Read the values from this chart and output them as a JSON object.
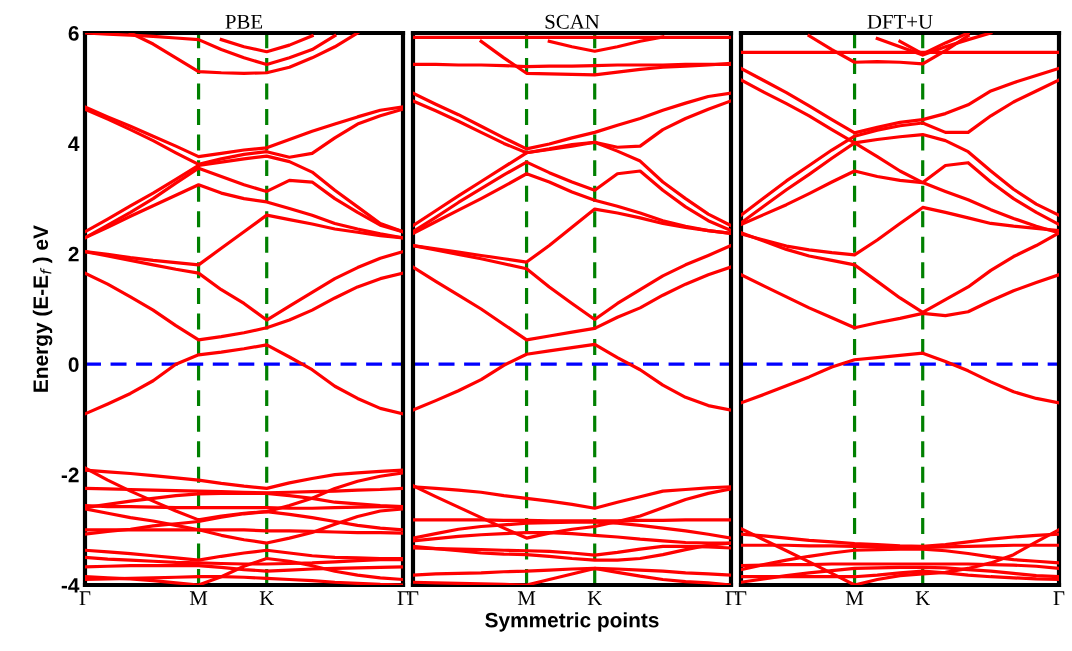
{
  "chart_data": [
    {
      "type": "line",
      "title": "PBE",
      "ylabel": "Energy (E-E$_{f}$ ) eV",
      "categories": [
        "Γ",
        null,
        null,
        null,
        null,
        "M",
        null,
        null,
        "K",
        null,
        null,
        null,
        null,
        null,
        "Γ"
      ],
      "ylim": [
        -4,
        6
      ],
      "yticks": [
        -4,
        -2,
        0,
        2,
        4,
        6
      ],
      "ref_lines": [
        {
          "axis": "x",
          "value": "M",
          "color": "#008000",
          "line_style": "dashed"
        },
        {
          "axis": "x",
          "value": "K",
          "color": "#008000",
          "line_style": "dashed"
        },
        {
          "axis": "y",
          "value": 0,
          "color": "#0000ff",
          "line_style": "dashed"
        }
      ],
      "series": [
        {
          "color": "#ff0000",
          "values": [
            -0.9,
            -0.72,
            -0.53,
            -0.3,
            0.0,
            0.17,
            0.22,
            0.28,
            0.35,
            0.13,
            -0.1,
            -0.4,
            -0.62,
            -0.8,
            -0.9
          ]
        },
        {
          "color": "#ff0000",
          "values": [
            1.65,
            1.45,
            1.22,
            0.98,
            0.7,
            0.44,
            0.5,
            0.57,
            0.66,
            0.8,
            0.98,
            1.2,
            1.4,
            1.55,
            1.65
          ]
        },
        {
          "color": "#ff0000",
          "values": [
            2.04,
            1.96,
            1.88,
            1.8,
            1.72,
            1.65,
            1.35,
            1.1,
            0.8,
            1.05,
            1.3,
            1.55,
            1.75,
            1.92,
            2.04
          ]
        },
        {
          "color": "#ff0000",
          "values": [
            2.04,
            1.99,
            1.93,
            1.88,
            1.84,
            1.8,
            2.1,
            2.4,
            2.7,
            2.62,
            2.54,
            2.45,
            2.39,
            2.33,
            2.29
          ]
        },
        {
          "color": "#ff0000",
          "values": [
            2.29,
            2.48,
            2.68,
            2.87,
            3.06,
            3.25,
            3.1,
            3.0,
            2.94,
            2.82,
            2.7,
            2.55,
            2.45,
            2.36,
            2.29
          ]
        },
        {
          "color": "#ff0000",
          "values": [
            2.29,
            2.52,
            2.75,
            3.0,
            3.28,
            3.55,
            3.4,
            3.25,
            3.13,
            3.33,
            3.3,
            3.0,
            2.75,
            2.52,
            2.4
          ]
        },
        {
          "color": "#ff0000",
          "values": [
            2.4,
            2.63,
            2.87,
            3.1,
            3.35,
            3.6,
            3.66,
            3.72,
            3.77,
            3.67,
            3.48,
            3.15,
            2.85,
            2.55,
            2.4
          ]
        },
        {
          "color": "#ff0000",
          "values": [
            4.66,
            4.48,
            4.31,
            4.13,
            3.95,
            3.76,
            3.82,
            3.88,
            3.92,
            4.07,
            4.22,
            4.35,
            4.48,
            4.6,
            4.66
          ]
        },
        {
          "color": "#ff0000",
          "values": [
            4.62,
            4.44,
            4.25,
            4.05,
            3.83,
            3.62,
            3.72,
            3.8,
            3.85,
            3.75,
            3.82,
            4.1,
            4.35,
            4.5,
            4.62
          ]
        },
        {
          "color": "#ff0000",
          "values": [
            null,
            null,
            6.0,
            5.8,
            5.55,
            5.3,
            5.28,
            5.27,
            5.28,
            5.38,
            5.55,
            5.75,
            6.0,
            null,
            null
          ]
        },
        {
          "color": "#ff0000",
          "values": [
            6.0,
            5.98,
            5.96,
            5.94,
            5.91,
            5.88,
            5.7,
            5.55,
            5.43,
            5.55,
            5.7,
            5.95,
            null,
            null,
            null
          ]
        },
        {
          "color": "#ff0000",
          "values": [
            null,
            null,
            null,
            null,
            null,
            null,
            5.88,
            5.75,
            5.66,
            5.78,
            5.95,
            null,
            null,
            null,
            null
          ]
        },
        {
          "color": "#ff0000",
          "values": [
            -1.92,
            -1.95,
            -1.98,
            -2.02,
            -2.06,
            -2.1,
            -2.16,
            -2.21,
            -2.25,
            -2.15,
            -2.07,
            -2.0,
            -1.97,
            -1.94,
            -1.92
          ]
        },
        {
          "color": "#ff0000",
          "values": [
            -1.88,
            -2.1,
            -2.3,
            -2.48,
            -2.66,
            -2.82,
            -2.75,
            -2.7,
            -2.67,
            -2.56,
            -2.43,
            -2.25,
            -2.12,
            -2.03,
            -1.97
          ]
        },
        {
          "color": "#ff0000",
          "values": [
            -2.25,
            -2.26,
            -2.27,
            -2.28,
            -2.29,
            -2.3,
            -2.31,
            -2.32,
            -2.33,
            -2.32,
            -2.31,
            -2.3,
            -2.28,
            -2.27,
            -2.25
          ]
        },
        {
          "color": "#ff0000",
          "values": [
            -2.6,
            -2.54,
            -2.48,
            -2.43,
            -2.38,
            -2.35,
            -2.34,
            -2.34,
            -2.34,
            -2.38,
            -2.43,
            -2.5,
            -2.53,
            -2.56,
            -2.58
          ]
        },
        {
          "color": "#ff0000",
          "values": [
            -2.56,
            -2.58,
            -2.58,
            -2.59,
            -2.6,
            -2.6,
            -2.6,
            -2.6,
            -2.6,
            -2.61,
            -2.61,
            -2.6,
            -2.59,
            -2.58,
            -2.58
          ]
        },
        {
          "color": "#ff0000",
          "values": [
            -2.62,
            -2.7,
            -2.78,
            -2.84,
            -2.92,
            -3.0,
            -3.1,
            -3.18,
            -3.24,
            -3.15,
            -3.05,
            -2.9,
            -2.76,
            -2.66,
            -2.62
          ]
        },
        {
          "color": "#ff0000",
          "values": [
            -3.0,
            -3.0,
            -3.0,
            -3.0,
            -3.0,
            -3.0,
            -3.0,
            -3.0,
            -3.02,
            -3.02,
            -3.03,
            -3.04,
            -3.05,
            -3.05,
            -3.06
          ]
        },
        {
          "color": "#ff0000",
          "values": [
            -3.08,
            -3.03,
            -2.99,
            -2.93,
            -2.89,
            -2.85,
            -2.77,
            -2.71,
            -2.67,
            -2.72,
            -2.78,
            -2.85,
            -2.92,
            -2.97,
            -3.0
          ]
        },
        {
          "color": "#ff0000",
          "values": [
            -3.37,
            -3.4,
            -3.43,
            -3.47,
            -3.51,
            -3.55,
            -3.48,
            -3.42,
            -3.37,
            -3.42,
            -3.47,
            -3.5,
            -3.51,
            -3.52,
            -3.52
          ]
        },
        {
          "color": "#ff0000",
          "values": [
            -3.5,
            -3.53,
            -3.55,
            -3.57,
            -3.59,
            -3.6,
            -3.61,
            -3.62,
            -3.62,
            -3.61,
            -3.6,
            -3.58,
            -3.56,
            -3.54,
            -3.54
          ]
        },
        {
          "color": "#ff0000",
          "values": [
            -3.67,
            -3.66,
            -3.65,
            -3.65,
            -3.65,
            -3.65,
            -3.68,
            -3.72,
            -3.75,
            -3.73,
            -3.71,
            -3.7,
            -3.69,
            -3.68,
            -3.67
          ]
        },
        {
          "color": "#ff0000",
          "values": [
            -3.85,
            -3.87,
            -3.89,
            -3.92,
            -3.96,
            -4.0,
            -3.85,
            -3.66,
            -3.52,
            -3.57,
            -3.65,
            -3.75,
            -3.82,
            -3.87,
            -3.9
          ]
        },
        {
          "color": "#ff0000",
          "values": [
            -3.9,
            -3.89,
            -3.88,
            -3.87,
            -3.86,
            -3.85,
            -3.85,
            -3.86,
            -3.88,
            -3.9,
            -3.92,
            -3.95,
            -3.97,
            -3.99,
            -4.0
          ]
        }
      ]
    },
    {
      "type": "line",
      "title": "SCAN",
      "xlabel": "Symmetric points",
      "tick_labels": "x",
      "categories": [
        "Γ",
        null,
        null,
        null,
        null,
        "M",
        null,
        null,
        "K",
        null,
        null,
        null,
        null,
        null,
        "Γ"
      ],
      "ylim": [
        -4,
        6
      ],
      "yticks": [
        -4,
        -2,
        0,
        2,
        4,
        6
      ],
      "ref_lines": [
        {
          "axis": "x",
          "value": "M",
          "color": "#008000",
          "line_style": "dashed"
        },
        {
          "axis": "x",
          "value": "K",
          "color": "#008000",
          "line_style": "dashed"
        },
        {
          "axis": "y",
          "value": 0,
          "color": "#0000ff",
          "line_style": "dashed"
        }
      ],
      "series": [
        {
          "color": "#ff0000",
          "values": [
            -0.83,
            -0.66,
            -0.48,
            -0.28,
            -0.02,
            0.18,
            0.24,
            0.3,
            0.36,
            0.12,
            -0.1,
            -0.38,
            -0.6,
            -0.75,
            -0.83
          ]
        },
        {
          "color": "#ff0000",
          "values": [
            1.76,
            1.5,
            1.25,
            1.0,
            0.72,
            0.44,
            0.51,
            0.58,
            0.65,
            0.85,
            1.02,
            1.25,
            1.45,
            1.62,
            1.76
          ]
        },
        {
          "color": "#ff0000",
          "values": [
            2.15,
            2.07,
            1.99,
            1.91,
            1.82,
            1.73,
            1.4,
            1.1,
            0.81,
            1.1,
            1.35,
            1.6,
            1.8,
            1.97,
            2.15
          ]
        },
        {
          "color": "#ff0000",
          "values": [
            2.15,
            2.09,
            2.03,
            1.97,
            1.91,
            1.85,
            2.15,
            2.48,
            2.81,
            2.74,
            2.65,
            2.55,
            2.48,
            2.42,
            2.37
          ]
        },
        {
          "color": "#ff0000",
          "values": [
            2.37,
            2.58,
            2.79,
            3.0,
            3.22,
            3.45,
            3.3,
            3.12,
            2.97,
            2.86,
            2.74,
            2.6,
            2.5,
            2.42,
            2.37
          ]
        },
        {
          "color": "#ff0000",
          "values": [
            2.4,
            2.66,
            2.93,
            3.18,
            3.43,
            3.66,
            3.47,
            3.3,
            3.15,
            3.45,
            3.5,
            3.15,
            2.85,
            2.6,
            2.42
          ]
        },
        {
          "color": "#ff0000",
          "values": [
            2.51,
            2.78,
            3.05,
            3.31,
            3.57,
            3.83,
            3.89,
            3.95,
            4.02,
            3.86,
            3.68,
            3.3,
            3.0,
            2.72,
            2.51
          ]
        },
        {
          "color": "#ff0000",
          "values": [
            4.77,
            4.59,
            4.4,
            4.2,
            4.0,
            3.83,
            3.9,
            3.98,
            4.02,
            3.93,
            3.95,
            4.25,
            4.45,
            4.62,
            4.77
          ]
        },
        {
          "color": "#ff0000",
          "values": [
            4.91,
            4.71,
            4.52,
            4.31,
            4.1,
            3.9,
            3.99,
            4.1,
            4.2,
            4.33,
            4.45,
            4.6,
            4.73,
            4.85,
            4.91
          ]
        },
        {
          "color": "#ff0000",
          "values": [
            5.43,
            5.43,
            5.42,
            5.42,
            5.41,
            5.39,
            5.4,
            5.4,
            5.41,
            5.42,
            5.42,
            5.42,
            5.43,
            5.43,
            5.43
          ]
        },
        {
          "color": "#ff0000",
          "values": [
            null,
            null,
            null,
            5.85,
            5.55,
            5.27,
            5.26,
            5.25,
            5.24,
            5.29,
            5.34,
            5.38,
            5.4,
            5.42,
            5.45
          ]
        },
        {
          "color": "#ff0000",
          "values": [
            null,
            null,
            null,
            null,
            null,
            null,
            5.85,
            5.75,
            5.67,
            5.75,
            5.85,
            5.93,
            null,
            null,
            null
          ]
        },
        {
          "color": "#ff0000",
          "values": [
            5.92,
            5.92,
            5.92,
            5.92,
            5.92,
            5.92,
            5.92,
            5.92,
            5.92,
            5.92,
            5.92,
            5.92,
            5.92,
            5.92,
            5.92
          ]
        },
        {
          "color": "#ff0000",
          "values": [
            -2.22,
            -2.25,
            -2.28,
            -2.32,
            -2.38,
            -2.43,
            -2.48,
            -2.54,
            -2.61,
            -2.5,
            -2.4,
            -2.3,
            -2.27,
            -2.24,
            -2.22
          ]
        },
        {
          "color": "#ff0000",
          "values": [
            -2.2,
            -2.4,
            -2.59,
            -2.78,
            -2.97,
            -3.15,
            -3.06,
            -2.99,
            -2.94,
            -2.85,
            -2.75,
            -2.6,
            -2.45,
            -2.34,
            -2.26
          ]
        },
        {
          "color": "#ff0000",
          "values": [
            -2.82,
            -2.82,
            -2.82,
            -2.82,
            -2.83,
            -2.83,
            -2.84,
            -2.84,
            -2.84,
            -2.84,
            -2.83,
            -2.83,
            -2.82,
            -2.82,
            -2.82
          ]
        },
        {
          "color": "#ff0000",
          "values": [
            -3.15,
            -3.07,
            -2.99,
            -2.94,
            -2.91,
            -2.88,
            -2.87,
            -2.86,
            -2.86,
            -2.88,
            -2.92,
            -2.97,
            -3.02,
            -3.08,
            -3.15
          ]
        },
        {
          "color": "#ff0000",
          "values": [
            -3.2,
            -3.16,
            -3.12,
            -3.09,
            -3.07,
            -3.05,
            -3.05,
            -3.07,
            -3.1,
            -3.13,
            -3.17,
            -3.2,
            -3.23,
            -3.24,
            -3.24
          ]
        },
        {
          "color": "#ff0000",
          "values": [
            -3.33,
            -3.34,
            -3.35,
            -3.36,
            -3.37,
            -3.38,
            -3.39,
            -3.42,
            -3.46,
            -3.41,
            -3.35,
            -3.3,
            -3.3,
            -3.31,
            -3.33
          ]
        },
        {
          "color": "#ff0000",
          "values": [
            -3.3,
            -3.34,
            -3.38,
            -3.42,
            -3.44,
            -3.45,
            -3.48,
            -3.52,
            -3.55,
            -3.55,
            -3.52,
            -3.45,
            -3.36,
            -3.28,
            -3.24
          ]
        },
        {
          "color": "#ff0000",
          "values": [
            -3.82,
            -3.8,
            -3.79,
            -3.78,
            -3.76,
            -3.75,
            -3.73,
            -3.71,
            -3.7,
            -3.71,
            -3.73,
            -3.75,
            -3.78,
            -3.8,
            -3.82
          ]
        },
        {
          "color": "#ff0000",
          "values": [
            -3.95,
            -3.96,
            -3.97,
            -3.98,
            -3.99,
            -4.0,
            -3.9,
            -3.8,
            -3.7,
            -3.77,
            -3.84,
            -3.9,
            -3.94,
            -3.96,
            -4.0
          ]
        }
      ]
    },
    {
      "type": "line",
      "title": "DFT+U",
      "tick_labels": "x",
      "categories": [
        "Γ",
        null,
        null,
        null,
        null,
        "M",
        null,
        null,
        "K",
        null,
        null,
        null,
        null,
        null,
        "Γ"
      ],
      "ylim": [
        -4,
        6
      ],
      "yticks": [
        -4,
        -2,
        0,
        2,
        4,
        6
      ],
      "ref_lines": [
        {
          "axis": "x",
          "value": "M",
          "color": "#008000",
          "line_style": "dashed"
        },
        {
          "axis": "x",
          "value": "K",
          "color": "#008000",
          "line_style": "dashed"
        },
        {
          "axis": "y",
          "value": 0,
          "color": "#0000ff",
          "line_style": "dashed"
        }
      ],
      "series": [
        {
          "color": "#ff0000",
          "values": [
            -0.7,
            -0.55,
            -0.39,
            -0.23,
            -0.05,
            0.08,
            0.12,
            0.16,
            0.2,
            0.05,
            -0.12,
            -0.32,
            -0.5,
            -0.62,
            -0.7
          ]
        },
        {
          "color": "#ff0000",
          "values": [
            1.62,
            1.42,
            1.22,
            1.02,
            0.84,
            0.66,
            0.75,
            0.83,
            0.92,
            0.88,
            0.95,
            1.15,
            1.33,
            1.48,
            1.62
          ]
        },
        {
          "color": "#ff0000",
          "values": [
            2.38,
            2.23,
            2.08,
            1.96,
            1.88,
            1.8,
            1.5,
            1.2,
            0.94,
            1.17,
            1.4,
            1.7,
            1.95,
            2.15,
            2.38
          ]
        },
        {
          "color": "#ff0000",
          "values": [
            2.36,
            2.25,
            2.14,
            2.07,
            2.02,
            1.98,
            2.25,
            2.55,
            2.84,
            2.75,
            2.65,
            2.55,
            2.5,
            2.46,
            2.42
          ]
        },
        {
          "color": "#ff0000",
          "values": [
            2.53,
            2.71,
            2.89,
            3.09,
            3.3,
            3.5,
            3.4,
            3.33,
            3.29,
            3.6,
            3.65,
            3.3,
            3.0,
            2.75,
            2.53
          ]
        },
        {
          "color": "#ff0000",
          "values": [
            2.56,
            2.86,
            3.16,
            3.44,
            3.73,
            4.01,
            4.07,
            4.12,
            4.16,
            4.05,
            3.85,
            3.5,
            3.17,
            2.9,
            2.7
          ]
        },
        {
          "color": "#ff0000",
          "values": [
            5.15,
            4.93,
            4.72,
            4.5,
            4.25,
            4.01,
            3.76,
            3.5,
            3.29,
            3.13,
            2.98,
            2.8,
            2.64,
            2.5,
            2.38
          ]
        },
        {
          "color": "#ff0000",
          "values": [
            2.7,
            3.01,
            3.32,
            3.6,
            3.88,
            4.13,
            4.24,
            4.32,
            4.37,
            4.2,
            4.2,
            4.5,
            4.75,
            4.95,
            5.15
          ]
        },
        {
          "color": "#ff0000",
          "values": [
            5.36,
            5.14,
            4.92,
            4.68,
            4.43,
            4.19,
            4.29,
            4.38,
            4.43,
            4.54,
            4.7,
            4.95,
            5.1,
            5.23,
            5.36
          ]
        },
        {
          "color": "#ff0000",
          "values": [
            5.65,
            5.65,
            5.65,
            5.65,
            5.65,
            5.65,
            5.65,
            5.65,
            5.65,
            5.65,
            5.65,
            5.65,
            5.65,
            5.65,
            5.65
          ]
        },
        {
          "color": "#ff0000",
          "values": [
            null,
            null,
            null,
            5.95,
            5.7,
            5.47,
            5.48,
            5.47,
            5.44,
            5.68,
            5.95,
            null,
            null,
            null,
            null
          ]
        },
        {
          "color": "#ff0000",
          "values": [
            null,
            null,
            null,
            null,
            null,
            null,
            5.9,
            5.75,
            5.6,
            5.75,
            5.88,
            6.0,
            null,
            null,
            null
          ]
        },
        {
          "color": "#ff0000",
          "values": [
            null,
            null,
            null,
            null,
            null,
            null,
            null,
            5.85,
            5.62,
            5.82,
            6.0,
            null,
            null,
            null,
            null
          ]
        },
        {
          "color": "#ff0000",
          "values": [
            -3.08,
            -3.11,
            -3.15,
            -3.19,
            -3.22,
            -3.25,
            -3.27,
            -3.29,
            -3.3,
            -3.27,
            -3.22,
            -3.17,
            -3.13,
            -3.1,
            -3.08
          ]
        },
        {
          "color": "#ff0000",
          "values": [
            -2.98,
            -3.18,
            -3.38,
            -3.58,
            -3.79,
            -4.0,
            -3.9,
            -3.83,
            -3.8,
            -3.77,
            -3.7,
            -3.6,
            -3.45,
            -3.22,
            -3.0
          ]
        },
        {
          "color": "#ff0000",
          "values": [
            -3.28,
            -3.28,
            -3.28,
            -3.29,
            -3.29,
            -3.3,
            -3.31,
            -3.32,
            -3.32,
            -3.31,
            -3.3,
            -3.29,
            -3.28,
            -3.28,
            -3.28
          ]
        },
        {
          "color": "#ff0000",
          "values": [
            -3.72,
            -3.63,
            -3.55,
            -3.48,
            -3.42,
            -3.37,
            -3.36,
            -3.35,
            -3.35,
            -3.38,
            -3.43,
            -3.49,
            -3.54,
            -3.57,
            -3.6
          ]
        },
        {
          "color": "#ff0000",
          "values": [
            -3.65,
            -3.64,
            -3.63,
            -3.63,
            -3.62,
            -3.62,
            -3.62,
            -3.62,
            -3.62,
            -3.62,
            -3.62,
            -3.63,
            -3.64,
            -3.66,
            -3.7
          ]
        },
        {
          "color": "#ff0000",
          "values": [
            -3.85,
            -3.85,
            -3.85,
            -3.85,
            -3.85,
            -3.85,
            -3.82,
            -3.78,
            -3.75,
            -3.78,
            -3.82,
            -3.85,
            -3.87,
            -3.89,
            -3.9
          ]
        },
        {
          "color": "#ff0000",
          "values": [
            -3.95,
            -3.89,
            -3.83,
            -3.78,
            -3.74,
            -3.7,
            -3.69,
            -3.68,
            -3.68,
            -3.69,
            -3.72,
            -3.75,
            -3.79,
            -3.83,
            -3.85
          ]
        }
      ]
    }
  ]
}
